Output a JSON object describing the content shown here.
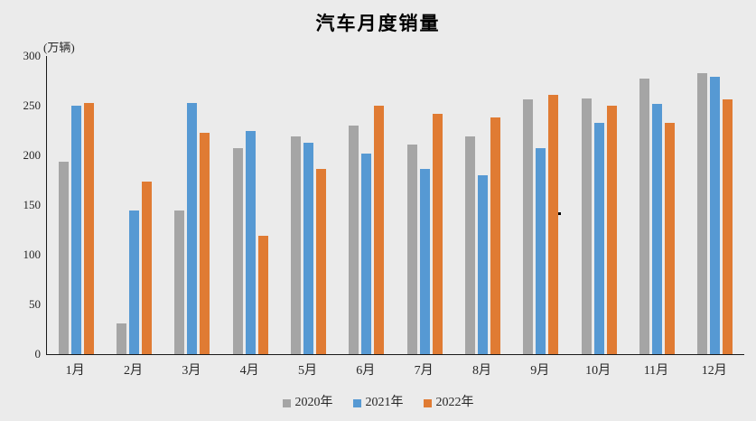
{
  "title": "汽车月度销量",
  "y_axis_unit_label": "(万辆)",
  "chart_data": {
    "type": "bar",
    "title": "汽车月度销量",
    "ylabel": "(万辆)",
    "xlabel": "",
    "categories": [
      "1月",
      "2月",
      "3月",
      "4月",
      "5月",
      "6月",
      "7月",
      "8月",
      "9月",
      "10月",
      "11月",
      "12月"
    ],
    "series": [
      {
        "name": "2020年",
        "color": "#a5a5a5",
        "values": [
          194,
          31,
          145,
          207,
          219,
          230,
          211,
          219,
          256,
          257,
          277,
          283
        ]
      },
      {
        "name": "2021年",
        "color": "#5699d3",
        "values": [
          250,
          145,
          253,
          225,
          213,
          202,
          186,
          180,
          207,
          233,
          252,
          279
        ]
      },
      {
        "name": "2022年",
        "color": "#e07b33",
        "values": [
          253,
          174,
          223,
          119,
          186,
          250,
          242,
          238,
          261,
          250,
          233,
          256
        ]
      }
    ],
    "ylim": [
      0,
      300
    ],
    "yticks": [
      0,
      50,
      100,
      150,
      200,
      250,
      300
    ],
    "grid": false,
    "legend_position": "bottom",
    "background_color": "#ebebeb",
    "axis_color": "#1a1a1a"
  }
}
